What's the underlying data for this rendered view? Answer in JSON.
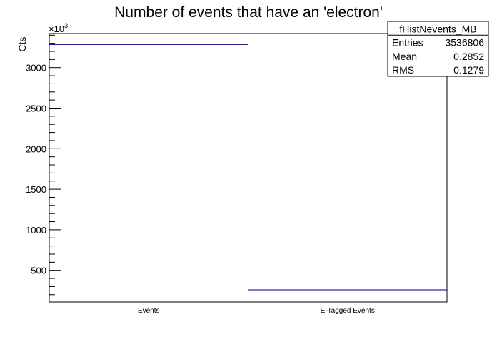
{
  "chart_data": {
    "type": "bar",
    "title": "Number of events that have an 'electron'",
    "ylabel": "Cts",
    "xlabel": "",
    "y_multiplier_label": "×10",
    "y_multiplier_exponent": "3",
    "categories": [
      "Events",
      "E-Tagged Events"
    ],
    "values": [
      3285,
      260
    ],
    "ylim": [
      110,
      3420
    ],
    "yticks_major": [
      500,
      1000,
      1500,
      2000,
      2500,
      3000
    ],
    "ytick_labels": [
      "500",
      "1000",
      "1500",
      "2000",
      "2500",
      "3000"
    ],
    "bar_color": "#000080",
    "grid": false,
    "legend": "none",
    "stats_box": {
      "name": "fHistNevents_MB",
      "placement": "top-right",
      "rows": [
        {
          "label": "Entries",
          "value": "3536806"
        },
        {
          "label": "Mean",
          "value": "0.2852"
        },
        {
          "label": "RMS",
          "value": "0.1279"
        }
      ]
    }
  }
}
